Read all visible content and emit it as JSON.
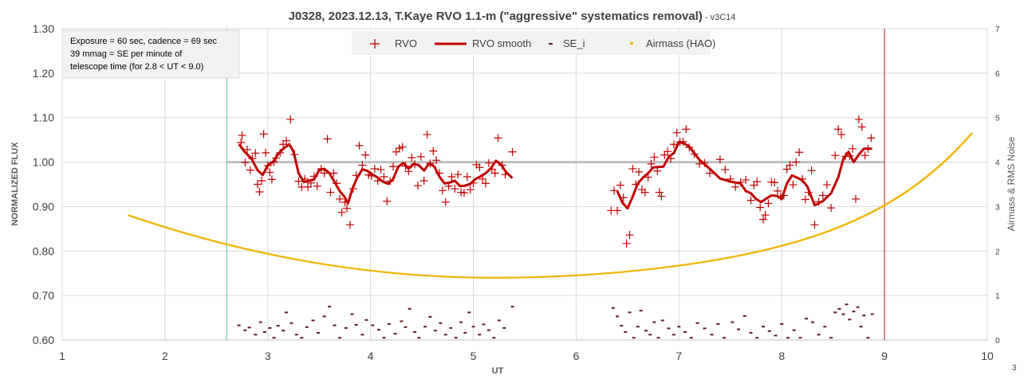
{
  "chart_data": {
    "type": "scatter",
    "title": "J0328, 2023.12.13, T.Kaye RVO 1.1-m (\"aggressive\" systematics removal)",
    "subtitle": " - v3C14",
    "xlabel": "UT",
    "ylabel": "NORMALIZED FLUX",
    "y2label": "Airmass & RMS Noise",
    "xlim": [
      1,
      10
    ],
    "ylim": [
      0.6,
      1.3
    ],
    "y2lim": [
      0,
      7
    ],
    "x_ticks": [
      "1",
      "2",
      "3",
      "4",
      "5",
      "6",
      "7",
      "8",
      "9",
      "10"
    ],
    "y_ticks": [
      "0.60",
      "0.70",
      "0.80",
      "0.90",
      "1.00",
      "1.10",
      "1.20",
      "1.30"
    ],
    "y2_ticks": [
      "0",
      "1",
      "2",
      "3",
      "4",
      "5",
      "6",
      "7"
    ],
    "corner_label": "3",
    "grid": true,
    "legend_placement": "top-center",
    "legend": [
      {
        "name": "RVO",
        "marker": "plus",
        "color": "#c00000"
      },
      {
        "name": "RVO smooth",
        "marker": "line",
        "color": "#c00000"
      },
      {
        "name": "SE_i",
        "marker": "dash",
        "color": "#5a1a1a"
      },
      {
        "name": "Airmass (HAO)",
        "marker": "dot",
        "color": "#f0b400"
      }
    ],
    "annotation": {
      "lines": [
        "Exposure = 60 sec, cadence = 69 sec",
        "39 mmag = SE per minute of",
        "telescope time  (for 2.8 < UT < 9.0)"
      ]
    },
    "reference_line": {
      "y": 1.0,
      "x_range": [
        2.6,
        9.0
      ],
      "color": "#bfbfbf"
    },
    "vertical_lines": [
      {
        "x": 2.6,
        "color": "#7fd3b0"
      },
      {
        "x": 9.0,
        "color": "#c0504d"
      }
    ],
    "airmass_curve": {
      "x_min": 1.65,
      "x_max": 9.85,
      "x_mid": 5.2,
      "y_mid": 1.4,
      "y_start": 2.8,
      "y_end": 4.65,
      "color": "#f0b400"
    },
    "rvo_points": [
      [
        2.74,
        1.044
      ],
      [
        2.75,
        1.06
      ],
      [
        2.78,
        0.999
      ],
      [
        2.8,
        1.028
      ],
      [
        2.83,
        0.982
      ],
      [
        2.85,
        1.008
      ],
      [
        2.88,
        1.02
      ],
      [
        2.9,
        0.95
      ],
      [
        2.92,
        0.933
      ],
      [
        2.94,
        0.958
      ],
      [
        2.96,
        1.063
      ],
      [
        2.98,
        1.021
      ],
      [
        3.0,
        0.992
      ],
      [
        3.02,
        0.977
      ],
      [
        3.04,
        0.961
      ],
      [
        3.06,
        1.0
      ],
      [
        3.08,
        1.009
      ],
      [
        3.12,
        1.021
      ],
      [
        3.15,
        1.04
      ],
      [
        3.18,
        1.048
      ],
      [
        3.22,
        1.096
      ],
      [
        3.26,
        1.017
      ],
      [
        3.3,
        0.957
      ],
      [
        3.33,
        0.944
      ],
      [
        3.36,
        0.962
      ],
      [
        3.39,
        0.944
      ],
      [
        3.42,
        0.953
      ],
      [
        3.45,
        0.968
      ],
      [
        3.48,
        0.946
      ],
      [
        3.52,
        0.985
      ],
      [
        3.55,
        0.975
      ],
      [
        3.58,
        1.052
      ],
      [
        3.61,
        0.932
      ],
      [
        3.64,
        0.975
      ],
      [
        3.67,
        0.952
      ],
      [
        3.7,
        0.917
      ],
      [
        3.72,
        0.887
      ],
      [
        3.75,
        0.91
      ],
      [
        3.77,
        0.896
      ],
      [
        3.8,
        0.859
      ],
      [
        3.83,
        0.94
      ],
      [
        3.86,
        0.97
      ],
      [
        3.89,
        1.037
      ],
      [
        3.92,
        0.993
      ],
      [
        3.95,
        1.016
      ],
      [
        3.98,
        0.971
      ],
      [
        4.01,
        0.969
      ],
      [
        4.04,
        0.985
      ],
      [
        4.07,
        0.958
      ],
      [
        4.1,
        0.983
      ],
      [
        4.13,
        0.967
      ],
      [
        4.16,
        0.912
      ],
      [
        4.19,
        0.957
      ],
      [
        4.22,
        0.99
      ],
      [
        4.25,
        1.023
      ],
      [
        4.28,
        1.031
      ],
      [
        4.31,
        1.034
      ],
      [
        4.34,
        0.991
      ],
      [
        4.37,
        0.979
      ],
      [
        4.4,
        1.01
      ],
      [
        4.43,
        0.995
      ],
      [
        4.46,
        0.947
      ],
      [
        4.49,
        1.012
      ],
      [
        4.52,
        0.958
      ],
      [
        4.55,
        1.062
      ],
      [
        4.58,
        0.997
      ],
      [
        4.61,
        1.025
      ],
      [
        4.64,
        1.004
      ],
      [
        4.67,
        0.975
      ],
      [
        4.7,
        0.936
      ],
      [
        4.73,
        0.91
      ],
      [
        4.76,
        0.946
      ],
      [
        4.79,
        0.967
      ],
      [
        4.82,
        0.94
      ],
      [
        4.85,
        0.972
      ],
      [
        4.88,
        0.932
      ],
      [
        4.91,
        0.931
      ],
      [
        4.94,
        0.967
      ],
      [
        4.97,
        0.938
      ],
      [
        5.0,
        0.953
      ],
      [
        5.03,
        0.994
      ],
      [
        5.06,
        0.988
      ],
      [
        5.09,
        0.962
      ],
      [
        5.12,
        0.952
      ],
      [
        5.15,
        0.998
      ],
      [
        5.18,
        0.984
      ],
      [
        5.21,
        0.975
      ],
      [
        5.24,
        1.054
      ],
      [
        5.28,
        0.993
      ],
      [
        5.31,
        0.972
      ],
      [
        5.38,
        1.023
      ],
      [
        6.34,
        0.891
      ],
      [
        6.37,
        0.936
      ],
      [
        6.4,
        0.891
      ],
      [
        6.43,
        0.948
      ],
      [
        6.46,
        0.92
      ],
      [
        6.49,
        0.817
      ],
      [
        6.52,
        0.836
      ],
      [
        6.55,
        0.985
      ],
      [
        6.58,
        0.95
      ],
      [
        6.61,
        0.978
      ],
      [
        6.64,
        0.938
      ],
      [
        6.67,
        0.932
      ],
      [
        6.7,
        0.966
      ],
      [
        6.73,
        0.996
      ],
      [
        6.76,
        1.011
      ],
      [
        6.79,
        0.98
      ],
      [
        6.81,
        0.932
      ],
      [
        6.83,
        0.923
      ],
      [
        6.86,
        1.016
      ],
      [
        6.89,
        1.024
      ],
      [
        6.92,
        1.008
      ],
      [
        6.95,
        1.04
      ],
      [
        6.98,
        1.066
      ],
      [
        7.01,
        1.045
      ],
      [
        7.04,
        1.046
      ],
      [
        7.07,
        1.074
      ],
      [
        7.1,
        1.033
      ],
      [
        7.15,
        1.018
      ],
      [
        7.2,
        0.996
      ],
      [
        7.25,
        0.998
      ],
      [
        7.3,
        0.975
      ],
      [
        7.4,
        1.006
      ],
      [
        7.45,
        0.983
      ],
      [
        7.5,
        0.962
      ],
      [
        7.55,
        0.944
      ],
      [
        7.6,
        0.955
      ],
      [
        7.65,
        0.96
      ],
      [
        7.7,
        0.914
      ],
      [
        7.73,
        0.948
      ],
      [
        7.76,
        0.956
      ],
      [
        7.79,
        0.898
      ],
      [
        7.82,
        0.871
      ],
      [
        7.84,
        0.881
      ],
      [
        7.87,
        0.907
      ],
      [
        7.9,
        0.955
      ],
      [
        7.93,
        0.954
      ],
      [
        7.96,
        0.935
      ],
      [
        7.99,
        0.923
      ],
      [
        8.02,
        0.925
      ],
      [
        8.05,
        0.984
      ],
      [
        8.08,
        0.993
      ],
      [
        8.11,
        0.949
      ],
      [
        8.14,
        1.0
      ],
      [
        8.17,
        1.022
      ],
      [
        8.2,
        0.962
      ],
      [
        8.23,
        0.916
      ],
      [
        8.26,
        0.932
      ],
      [
        8.29,
        0.981
      ],
      [
        8.32,
        0.859
      ],
      [
        8.36,
        0.911
      ],
      [
        8.4,
        0.925
      ],
      [
        8.44,
        0.949
      ],
      [
        8.48,
        0.897
      ],
      [
        8.52,
        1.015
      ],
      [
        8.55,
        1.074
      ],
      [
        8.58,
        1.062
      ],
      [
        8.62,
        1.013
      ],
      [
        8.66,
        1.014
      ],
      [
        8.69,
        1.03
      ],
      [
        8.72,
        0.917
      ],
      [
        8.75,
        1.096
      ],
      [
        8.78,
        1.079
      ],
      [
        8.81,
        1.015
      ],
      [
        8.84,
        1.03
      ],
      [
        8.87,
        1.054
      ]
    ],
    "rvo_smooth": [
      [
        [
          2.72,
          1.04
        ],
        [
          2.78,
          1.022
        ],
        [
          2.84,
          1.008
        ],
        [
          2.9,
          0.982
        ],
        [
          2.95,
          0.971
        ],
        [
          3.0,
          0.993
        ],
        [
          3.05,
          1.0
        ],
        [
          3.1,
          1.018
        ],
        [
          3.15,
          1.03
        ],
        [
          3.21,
          1.04
        ],
        [
          3.25,
          1.024
        ],
        [
          3.3,
          0.975
        ],
        [
          3.35,
          0.955
        ],
        [
          3.4,
          0.958
        ],
        [
          3.45,
          0.961
        ],
        [
          3.5,
          0.982
        ],
        [
          3.55,
          0.985
        ],
        [
          3.6,
          0.975
        ],
        [
          3.65,
          0.955
        ],
        [
          3.7,
          0.935
        ],
        [
          3.75,
          0.921
        ],
        [
          3.78,
          0.907
        ],
        [
          3.82,
          0.938
        ],
        [
          3.87,
          0.965
        ],
        [
          3.92,
          0.984
        ],
        [
          3.97,
          0.98
        ],
        [
          4.02,
          0.972
        ],
        [
          4.07,
          0.965
        ],
        [
          4.12,
          0.956
        ],
        [
          4.17,
          0.951
        ],
        [
          4.22,
          0.962
        ],
        [
          4.27,
          0.99
        ],
        [
          4.32,
          0.998
        ],
        [
          4.37,
          0.985
        ],
        [
          4.42,
          0.996
        ],
        [
          4.47,
          0.993
        ],
        [
          4.52,
          0.981
        ],
        [
          4.57,
          0.997
        ],
        [
          4.62,
          0.99
        ],
        [
          4.67,
          0.967
        ],
        [
          4.72,
          0.952
        ],
        [
          4.77,
          0.954
        ],
        [
          4.82,
          0.958
        ],
        [
          4.87,
          0.946
        ],
        [
          4.92,
          0.947
        ],
        [
          4.97,
          0.951
        ],
        [
          5.02,
          0.962
        ],
        [
          5.07,
          0.968
        ],
        [
          5.12,
          0.975
        ],
        [
          5.17,
          0.986
        ],
        [
          5.22,
          1.003
        ],
        [
          5.27,
          0.994
        ],
        [
          5.32,
          0.977
        ],
        [
          5.38,
          0.964
        ]
      ],
      [
        [
          6.4,
          0.935
        ],
        [
          6.45,
          0.909
        ],
        [
          6.5,
          0.896
        ],
        [
          6.55,
          0.922
        ],
        [
          6.6,
          0.952
        ],
        [
          6.65,
          0.965
        ],
        [
          6.7,
          0.975
        ],
        [
          6.75,
          0.988
        ],
        [
          6.8,
          0.989
        ],
        [
          6.85,
          0.99
        ],
        [
          6.9,
          1.012
        ],
        [
          6.95,
          1.02
        ],
        [
          7.0,
          1.045
        ],
        [
          7.05,
          1.042
        ],
        [
          7.1,
          1.035
        ],
        [
          7.2,
          1.005
        ],
        [
          7.3,
          0.985
        ],
        [
          7.4,
          0.963
        ],
        [
          7.5,
          0.956
        ],
        [
          7.6,
          0.952
        ],
        [
          7.65,
          0.935
        ],
        [
          7.7,
          0.93
        ],
        [
          7.75,
          0.917
        ],
        [
          7.8,
          0.91
        ],
        [
          7.85,
          0.918
        ],
        [
          7.9,
          0.925
        ],
        [
          7.95,
          0.924
        ],
        [
          8.0,
          0.917
        ],
        [
          8.05,
          0.952
        ],
        [
          8.1,
          0.97
        ],
        [
          8.15,
          0.965
        ],
        [
          8.2,
          0.959
        ],
        [
          8.25,
          0.945
        ],
        [
          8.32,
          0.903
        ],
        [
          8.4,
          0.912
        ],
        [
          8.48,
          0.93
        ],
        [
          8.55,
          0.966
        ],
        [
          8.6,
          1.008
        ],
        [
          8.65,
          1.023
        ],
        [
          8.7,
          1.0
        ],
        [
          8.75,
          1.017
        ],
        [
          8.8,
          1.03
        ],
        [
          8.88,
          1.03
        ]
      ]
    ],
    "se_i_points": [
      [
        2.72,
        0.33
      ],
      [
        2.78,
        0.22
      ],
      [
        2.82,
        0.28
      ],
      [
        2.88,
        0.12
      ],
      [
        2.93,
        0.4
      ],
      [
        2.97,
        0.18
      ],
      [
        3.02,
        0.27
      ],
      [
        3.06,
        0.05
      ],
      [
        3.1,
        0.32
      ],
      [
        3.15,
        0.21
      ],
      [
        3.18,
        0.62
      ],
      [
        3.23,
        0.38
      ],
      [
        3.28,
        0.12
      ],
      [
        3.33,
        0.05
      ],
      [
        3.38,
        0.29
      ],
      [
        3.44,
        0.44
      ],
      [
        3.49,
        0.16
      ],
      [
        3.55,
        0.53
      ],
      [
        3.6,
        0.75
      ],
      [
        3.65,
        0.33
      ],
      [
        3.7,
        0.05
      ],
      [
        3.76,
        0.27
      ],
      [
        3.82,
        0.58
      ],
      [
        3.86,
        0.34
      ],
      [
        3.92,
        0.12
      ],
      [
        3.96,
        0.45
      ],
      [
        4.02,
        0.33
      ],
      [
        4.08,
        0.23
      ],
      [
        4.13,
        0.05
      ],
      [
        4.18,
        0.36
      ],
      [
        4.24,
        0.14
      ],
      [
        4.3,
        0.42
      ],
      [
        4.34,
        0.29
      ],
      [
        4.38,
        0.7
      ],
      [
        4.43,
        0.18
      ],
      [
        4.47,
        0.05
      ],
      [
        4.53,
        0.3
      ],
      [
        4.58,
        0.52
      ],
      [
        4.63,
        0.21
      ],
      [
        4.68,
        0.38
      ],
      [
        4.73,
        0.12
      ],
      [
        4.78,
        0.27
      ],
      [
        4.83,
        0.05
      ],
      [
        4.88,
        0.4
      ],
      [
        4.92,
        0.16
      ],
      [
        4.96,
        0.62
      ],
      [
        5.0,
        0.3
      ],
      [
        5.06,
        0.12
      ],
      [
        5.1,
        0.35
      ],
      [
        5.15,
        0.22
      ],
      [
        5.2,
        0.05
      ],
      [
        5.25,
        0.44
      ],
      [
        5.3,
        0.27
      ],
      [
        5.38,
        0.75
      ],
      [
        6.36,
        0.72
      ],
      [
        6.4,
        0.53
      ],
      [
        6.44,
        0.32
      ],
      [
        6.48,
        0.18
      ],
      [
        6.52,
        0.62
      ],
      [
        6.56,
        0.05
      ],
      [
        6.6,
        0.3
      ],
      [
        6.63,
        0.66
      ],
      [
        6.68,
        0.21
      ],
      [
        6.72,
        0.12
      ],
      [
        6.76,
        0.4
      ],
      [
        6.8,
        0.05
      ],
      [
        6.84,
        0.44
      ],
      [
        6.9,
        0.26
      ],
      [
        6.95,
        0.12
      ],
      [
        7.0,
        0.3
      ],
      [
        7.06,
        0.18
      ],
      [
        7.12,
        0.05
      ],
      [
        7.18,
        0.38
      ],
      [
        7.25,
        0.26
      ],
      [
        7.32,
        0.12
      ],
      [
        7.38,
        0.36
      ],
      [
        7.44,
        0.05
      ],
      [
        7.52,
        0.4
      ],
      [
        7.58,
        0.24
      ],
      [
        7.64,
        0.54
      ],
      [
        7.7,
        0.16
      ],
      [
        7.76,
        0.05
      ],
      [
        7.82,
        0.3
      ],
      [
        7.88,
        0.2
      ],
      [
        7.94,
        0.1
      ],
      [
        8.0,
        0.36
      ],
      [
        8.06,
        0.05
      ],
      [
        8.12,
        0.22
      ],
      [
        8.18,
        0.05
      ],
      [
        8.24,
        0.48
      ],
      [
        8.3,
        0.4
      ],
      [
        8.36,
        0.12
      ],
      [
        8.42,
        0.3
      ],
      [
        8.48,
        0.05
      ],
      [
        8.52,
        0.62
      ],
      [
        8.56,
        0.7
      ],
      [
        8.6,
        0.58
      ],
      [
        8.63,
        0.8
      ],
      [
        8.66,
        0.46
      ],
      [
        8.7,
        0.64
      ],
      [
        8.74,
        0.74
      ],
      [
        8.77,
        0.3
      ],
      [
        8.8,
        0.55
      ],
      [
        8.84,
        0.05
      ],
      [
        8.88,
        0.58
      ]
    ]
  }
}
